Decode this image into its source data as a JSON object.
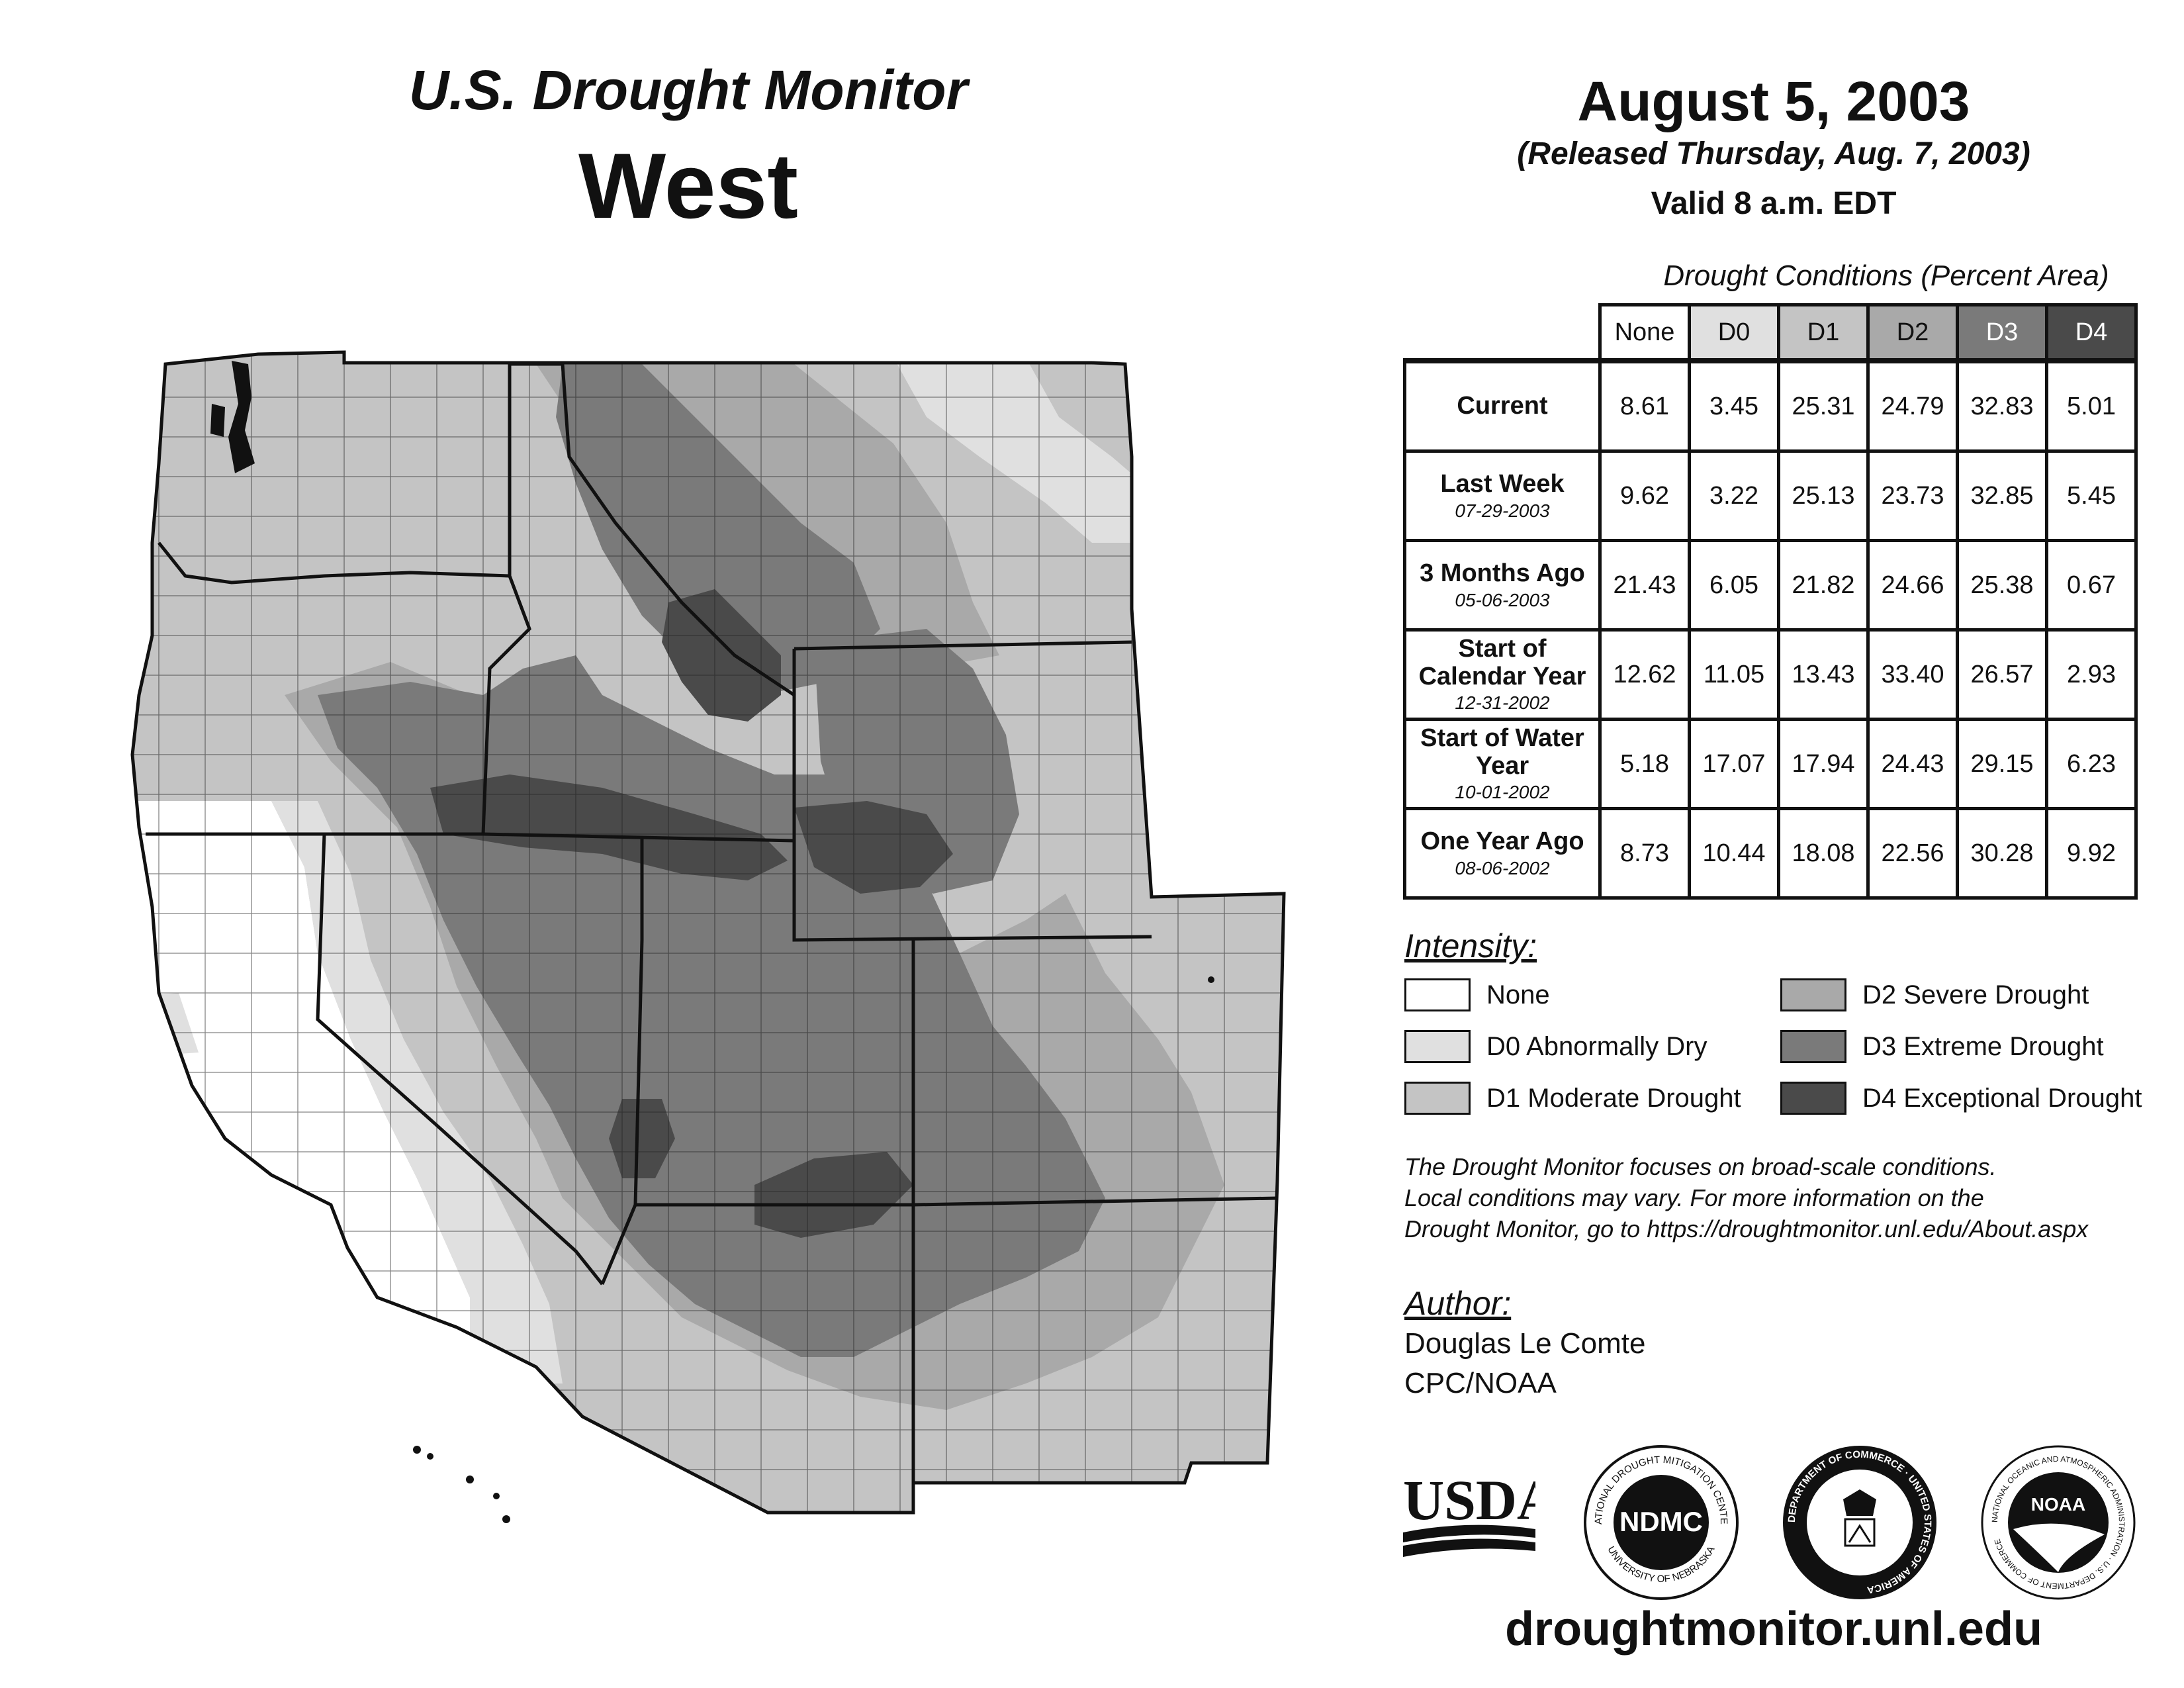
{
  "header": {
    "title": "U.S. Drought Monitor",
    "region": "West",
    "date": "August 5, 2003",
    "released": "(Released Thursday, Aug. 7, 2003)",
    "valid": "Valid 8 a.m. EDT"
  },
  "table": {
    "caption": "Drought Conditions (Percent Area)",
    "columns": [
      "None",
      "D0",
      "D1",
      "D2",
      "D3",
      "D4"
    ],
    "rows": [
      {
        "label": "Current",
        "date": "",
        "values": [
          "8.61",
          "3.45",
          "25.31",
          "24.79",
          "32.83",
          "5.01"
        ]
      },
      {
        "label": "Last Week",
        "date": "07-29-2003",
        "values": [
          "9.62",
          "3.22",
          "25.13",
          "23.73",
          "32.85",
          "5.45"
        ]
      },
      {
        "label": "3 Months Ago",
        "date": "05-06-2003",
        "values": [
          "21.43",
          "6.05",
          "21.82",
          "24.66",
          "25.38",
          "0.67"
        ]
      },
      {
        "label": "Start of Calendar Year",
        "date": "12-31-2002",
        "values": [
          "12.62",
          "11.05",
          "13.43",
          "33.40",
          "26.57",
          "2.93"
        ]
      },
      {
        "label": "Start of Water Year",
        "date": "10-01-2002",
        "values": [
          "5.18",
          "17.07",
          "17.94",
          "24.43",
          "29.15",
          "6.23"
        ]
      },
      {
        "label": "One Year Ago",
        "date": "08-06-2002",
        "values": [
          "8.73",
          "10.44",
          "18.08",
          "22.56",
          "30.28",
          "9.92"
        ]
      }
    ]
  },
  "legend": {
    "title": "Intensity:",
    "items": [
      {
        "label": "None",
        "color": "#ffffff"
      },
      {
        "label": "D0 Abnormally Dry",
        "color": "#e0e0e0"
      },
      {
        "label": "D1 Moderate Drought",
        "color": "#c4c4c4"
      },
      {
        "label": "D2 Severe Drought",
        "color": "#a9a9a9"
      },
      {
        "label": "D3 Extreme Drought",
        "color": "#7a7a7a"
      },
      {
        "label": "D4 Exceptional Drought",
        "color": "#4a4a4a"
      }
    ]
  },
  "note": {
    "line1": "The Drought Monitor focuses on broad-scale conditions.",
    "line2": "Local conditions may vary. For more information on the",
    "line3": "Drought Monitor, go to https://droughtmonitor.unl.edu/About.aspx"
  },
  "author": {
    "title": "Author:",
    "name": "Douglas Le Comte",
    "org": "CPC/NOAA"
  },
  "logos": {
    "usda": "USDA",
    "ndmc": "NDMC",
    "ndmc_ring_top": "NATIONAL DROUGHT MITIGATION CENTER",
    "ndmc_ring_bottom": "UNIVERSITY OF NEBRASKA",
    "doc_ring": "DEPARTMENT OF COMMERCE · UNITED STATES OF AMERICA",
    "noaa": "NOAA",
    "noaa_ring": "NATIONAL OCEANIC AND ATMOSPHERIC ADMINISTRATION · U.S. DEPARTMENT OF COMMERCE"
  },
  "website": "droughtmonitor.unl.edu"
}
